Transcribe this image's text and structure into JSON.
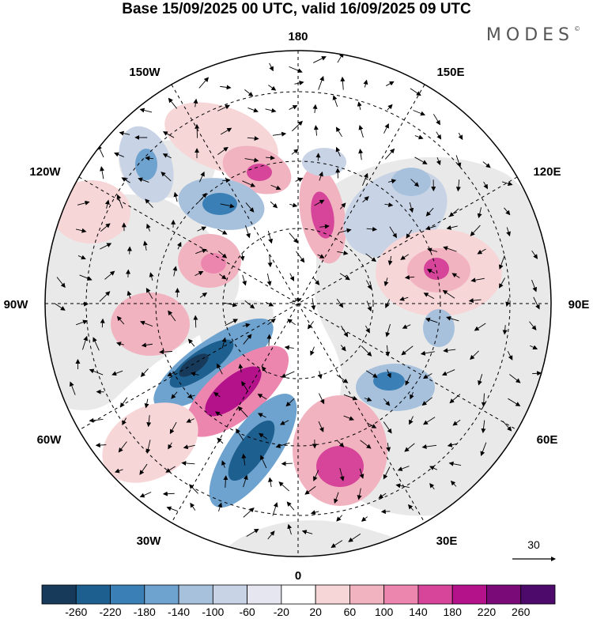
{
  "title": "Base 15/09/2025 00 UTC, valid 16/09/2025 09 UTC",
  "brand": "MODES",
  "brand_mark": "©",
  "longitude_labels": {
    "top": "180",
    "bottom": "0",
    "left": "90W",
    "right": "90E",
    "upper_left": "150W",
    "upper_right": "150E",
    "left_upper": "120W",
    "right_upper": "120E",
    "left_lower": "60W",
    "right_lower": "60E",
    "lower_left": "30W",
    "lower_right": "30E"
  },
  "vector_reference": {
    "label": "30"
  },
  "colorbar": {
    "ticks": [
      "-260",
      "-220",
      "-180",
      "-140",
      "-100",
      "-60",
      "-20",
      "20",
      "60",
      "100",
      "140",
      "180",
      "220",
      "260"
    ],
    "colors": [
      "#183a5a",
      "#1d5f8f",
      "#3a7fb5",
      "#6fa3cf",
      "#a7c1dd",
      "#c9d3e6",
      "#e6e6f1",
      "#ffffff",
      "#f7d6d8",
      "#f2b3c0",
      "#ec86ae",
      "#d6459a",
      "#b3128a",
      "#7a0a78",
      "#4d0a6a"
    ]
  },
  "palette": {
    "land": "#e9e9e9",
    "ocean": "#ffffff",
    "negative_strong": "#1d5f8f",
    "positive_strong": "#d6459a"
  }
}
